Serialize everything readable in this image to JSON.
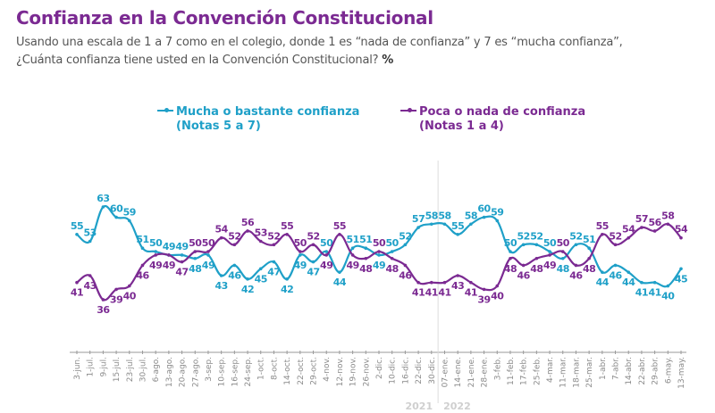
{
  "header": {
    "title": "Confianza en la Convención Constitucional",
    "subtitle_line1": "Usando una escala de 1 a 7 como en el colegio, donde 1 es “nada de confianza” y 7 es “mucha confianza”,",
    "subtitle_line2": "¿Cuánta confianza tiene usted en la Convención Constitucional?",
    "subtitle_unit": "%"
  },
  "colors": {
    "mucha": "#1fa0c8",
    "poca": "#7b2a92",
    "title": "#7b2a92",
    "axis": "#9a9a9a",
    "year": "#cfcfcf"
  },
  "chart_data": {
    "type": "line",
    "title": "Confianza en la Convención Constitucional",
    "xlabel": "",
    "ylabel": "%",
    "ylim": [
      30,
      66
    ],
    "grid": false,
    "legend_position": "top-center",
    "categories": [
      "3-jun.",
      "1-jul.",
      "9-jul.",
      "15-jul.",
      "23-jul.",
      "30-jul.",
      "6-ago.",
      "13-ago.",
      "20-ago.",
      "27-ago.",
      "3-sep.",
      "10-sep.",
      "16-sep.",
      "24-sep.",
      "1-oct.",
      "8-oct.",
      "14-oct.",
      "22-oct.",
      "29-oct.",
      "4-nov.",
      "12-nov.",
      "19-nov.",
      "26-nov.",
      "2-dic.",
      "10-dic.",
      "16-dic.",
      "22-dic.",
      "30-dic.",
      "07-ene.",
      "14-ene.",
      "21-ene.",
      "28-ene.",
      "3-feb.",
      "11-feb.",
      "17-feb.",
      "25-feb.",
      "4-mar.",
      "11-mar.",
      "18-mar.",
      "25-mar.",
      "1-abr.",
      "7-abr.",
      "14-abr.",
      "22-abr.",
      "29-abr.",
      "6-may.",
      "13-may."
    ],
    "year_labels": [
      {
        "label": "2021",
        "after_index": 27
      },
      {
        "label": "2022",
        "from_index": 28
      }
    ],
    "series": [
      {
        "key": "mucha",
        "name": "Mucha o bastante confianza",
        "name_sub": "(Notas 5 a 7)",
        "values": [
          55,
          53,
          63,
          60,
          59,
          51,
          50,
          49,
          49,
          48,
          49,
          43,
          46,
          42,
          45,
          47,
          42,
          49,
          47,
          50,
          44,
          51,
          51,
          49,
          50,
          52,
          57,
          58,
          58,
          55,
          58,
          60,
          59,
          50,
          52,
          52,
          50,
          48,
          52,
          51,
          44,
          46,
          44,
          41,
          41,
          40,
          45
        ],
        "label_above": [
          true,
          true,
          true,
          true,
          true,
          true,
          true,
          true,
          true,
          false,
          false,
          false,
          false,
          false,
          false,
          false,
          false,
          false,
          false,
          true,
          false,
          true,
          true,
          false,
          true,
          true,
          true,
          true,
          true,
          true,
          true,
          true,
          true,
          true,
          true,
          true,
          true,
          false,
          true,
          true,
          false,
          false,
          false,
          false,
          false,
          false,
          false
        ]
      },
      {
        "key": "poca",
        "name": "Poca o nada de confianza",
        "name_sub": "(Notas 1 a 4)",
        "values": [
          41,
          43,
          36,
          39,
          40,
          46,
          49,
          49,
          47,
          50,
          50,
          54,
          52,
          56,
          53,
          52,
          55,
          50,
          52,
          49,
          55,
          49,
          48,
          50,
          48,
          46,
          41,
          41,
          41,
          43,
          41,
          39,
          40,
          48,
          46,
          48,
          49,
          50,
          46,
          48,
          55,
          52,
          54,
          57,
          56,
          58,
          54
        ],
        "label_above": [
          false,
          false,
          false,
          false,
          false,
          false,
          false,
          false,
          false,
          true,
          true,
          true,
          true,
          true,
          true,
          true,
          true,
          true,
          true,
          false,
          true,
          false,
          false,
          true,
          false,
          false,
          false,
          false,
          false,
          false,
          false,
          false,
          false,
          false,
          false,
          false,
          false,
          true,
          false,
          false,
          true,
          true,
          true,
          true,
          true,
          true,
          true
        ]
      }
    ]
  }
}
